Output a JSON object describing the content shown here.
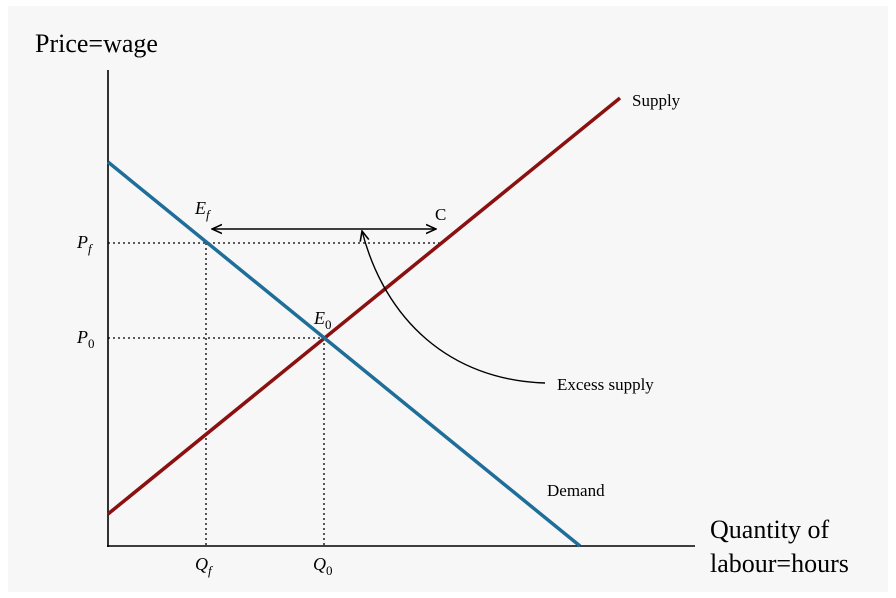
{
  "axes": {
    "y_label": "Price=wage",
    "x_label": [
      "Quantity of",
      "labour=hours"
    ]
  },
  "curves": {
    "supply": "Supply",
    "demand": "Demand"
  },
  "points": {
    "ef": {
      "main": "E",
      "sub": "f"
    },
    "e0": {
      "main": "E",
      "sub": "0"
    },
    "c": "C"
  },
  "prices": [
    {
      "main": "P",
      "sub": "f"
    },
    {
      "main": "P",
      "sub": "0"
    }
  ],
  "quantities": [
    {
      "main": "Q",
      "sub": "f"
    },
    {
      "main": "Q",
      "sub": "0"
    }
  ],
  "annotation": "Excess supply"
}
